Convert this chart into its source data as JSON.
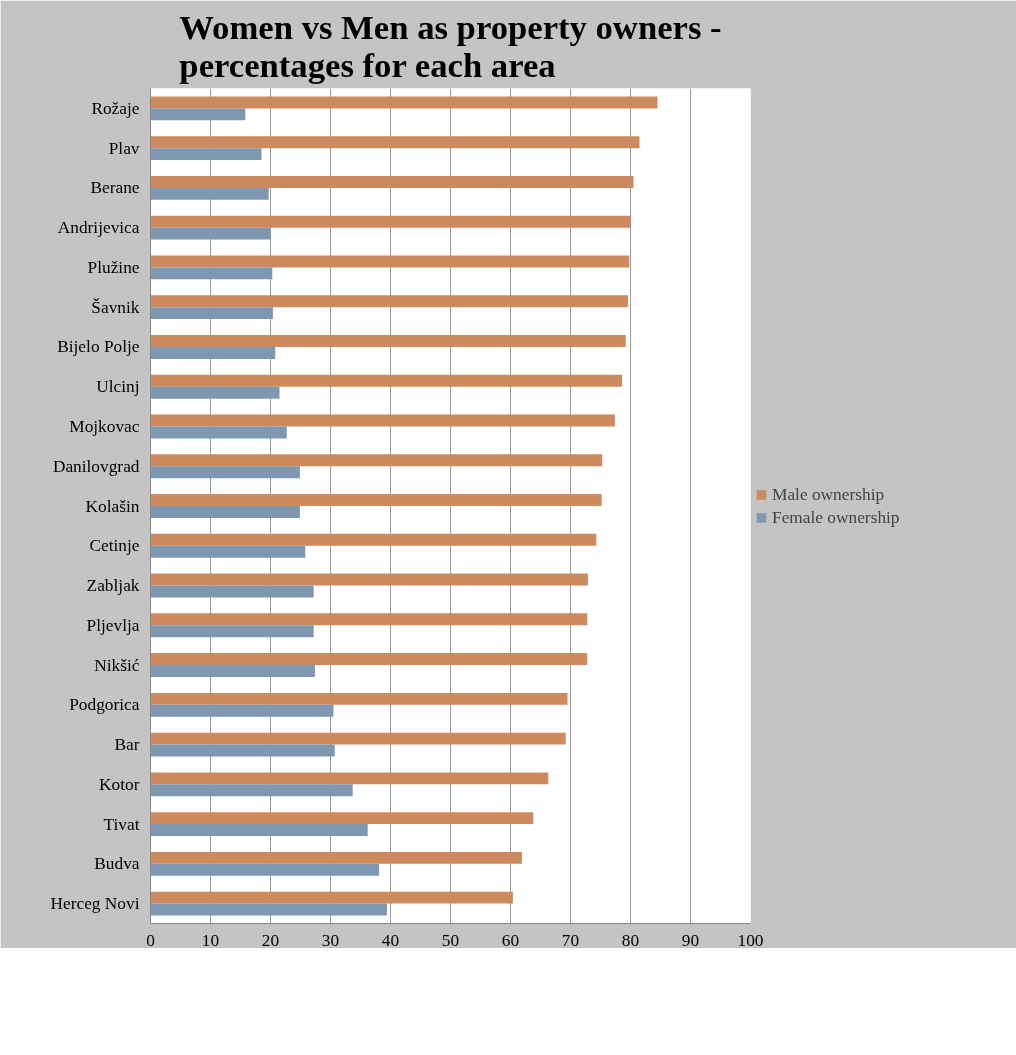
{
  "chart_data": {
    "type": "bar",
    "orientation": "horizontal",
    "title": "Women vs Men as property owners - percentages for each area",
    "categories": [
      "Rožaje",
      "Plav",
      "Berane",
      "Andrijevica",
      "Plužine",
      "Šavnik",
      "Bijelo Polje",
      "Ulcinj",
      "Mojkovac",
      "Danilovgrad",
      "Kolašin",
      "Cetinje",
      "Zabljak",
      "Pljevlja",
      "Nikšić",
      "Podgorica",
      "Bar",
      "Kotor",
      "Tivat",
      "Budva",
      "Herceg Novi"
    ],
    "series": [
      {
        "name": "Male ownership",
        "color": "#cc8a5e",
        "values": [
          84.5,
          81.5,
          80.5,
          80.0,
          79.8,
          79.6,
          79.2,
          78.6,
          77.4,
          75.3,
          75.2,
          74.3,
          72.9,
          72.8,
          72.8,
          69.5,
          69.2,
          66.3,
          63.8,
          61.9,
          60.4
        ]
      },
      {
        "name": "Female ownership",
        "color": "#7d98b0",
        "values": [
          15.8,
          18.5,
          19.7,
          20.0,
          20.3,
          20.4,
          20.8,
          21.5,
          22.7,
          24.9,
          24.9,
          25.8,
          27.2,
          27.2,
          27.4,
          30.5,
          30.7,
          33.7,
          36.2,
          38.1,
          39.4
        ]
      }
    ],
    "xlim": [
      0,
      100
    ],
    "xticks": [
      0,
      10,
      20,
      30,
      40,
      50,
      60,
      70,
      80,
      90,
      100
    ],
    "grid": "x",
    "legend": "right"
  }
}
